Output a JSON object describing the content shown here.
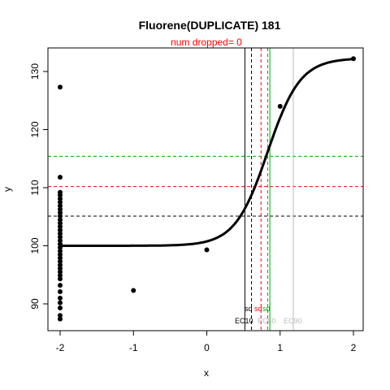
{
  "chart_data": {
    "type": "scatter",
    "title": "Fluorene(DUPLICATE) 181",
    "subtitle": "num dropped= 0",
    "xlabel": "x",
    "ylabel": "y",
    "xlim": [
      -2.0,
      2.0
    ],
    "ylim": [
      85.0,
      135.0
    ],
    "x_ticks": [
      -2,
      -1,
      0,
      1,
      2
    ],
    "y_ticks": [
      90,
      100,
      110,
      120,
      130
    ],
    "grid": false,
    "points": [
      {
        "x": -2,
        "y": 127.3
      },
      {
        "x": -2,
        "y": 111.8
      },
      {
        "x": -2,
        "y": 109.2
      },
      {
        "x": -2,
        "y": 108.7
      },
      {
        "x": -2,
        "y": 108.1
      },
      {
        "x": -2,
        "y": 107.5
      },
      {
        "x": -2,
        "y": 106.9
      },
      {
        "x": -2,
        "y": 106.3
      },
      {
        "x": -2,
        "y": 105.7
      },
      {
        "x": -2,
        "y": 105.1
      },
      {
        "x": -2,
        "y": 104.5
      },
      {
        "x": -2,
        "y": 103.9
      },
      {
        "x": -2,
        "y": 103.3
      },
      {
        "x": -2,
        "y": 102.7
      },
      {
        "x": -2,
        "y": 102.1
      },
      {
        "x": -2,
        "y": 101.5
      },
      {
        "x": -2,
        "y": 100.9
      },
      {
        "x": -2,
        "y": 100.3
      },
      {
        "x": -2,
        "y": 99.7
      },
      {
        "x": -2,
        "y": 99.1
      },
      {
        "x": -2,
        "y": 98.5
      },
      {
        "x": -2,
        "y": 97.9
      },
      {
        "x": -2,
        "y": 97.3
      },
      {
        "x": -2,
        "y": 96.7
      },
      {
        "x": -2,
        "y": 96.1
      },
      {
        "x": -2,
        "y": 95.5
      },
      {
        "x": -2,
        "y": 94.9
      },
      {
        "x": -2,
        "y": 94.3
      },
      {
        "x": -2,
        "y": 93.2
      },
      {
        "x": -2,
        "y": 92.1
      },
      {
        "x": -2,
        "y": 91.0
      },
      {
        "x": -2,
        "y": 90.2
      },
      {
        "x": -2,
        "y": 89.3
      },
      {
        "x": -2,
        "y": 88.0
      },
      {
        "x": -2,
        "y": 87.4
      },
      {
        "x": -1,
        "y": 92.3
      },
      {
        "x": 0,
        "y": 99.3
      },
      {
        "x": 1,
        "y": 124.0
      },
      {
        "x": 2,
        "y": 132.2
      }
    ],
    "fit_curve": {
      "bottom": 100.0,
      "top": 132.3,
      "ec50": 0.83,
      "hill": 4.5
    },
    "hlines": [
      {
        "y": 105.1,
        "color": "#000000",
        "style": "dashed"
      },
      {
        "y": 110.2,
        "color": "#ff0000",
        "style": "dashed"
      },
      {
        "y": 115.4,
        "color": "#00aa00",
        "style": "dashed"
      }
    ],
    "vlines": [
      {
        "x": 0.52,
        "color": "#000000",
        "style": "solid"
      },
      {
        "x": 0.61,
        "color": "#000000",
        "style": "dashed"
      },
      {
        "x": 0.74,
        "color": "#ff0000",
        "style": "dashed"
      },
      {
        "x": 0.83,
        "color": "#00aa00",
        "style": "dashed"
      },
      {
        "x": 0.86,
        "color": "#00aa00",
        "style": "solid"
      },
      {
        "x": 1.18,
        "color": "#bbbbbb",
        "style": "solid"
      }
    ],
    "vline_labels": [
      {
        "text": "sd",
        "color": "#000000"
      },
      {
        "text": "sd",
        "color": "#ff0000"
      },
      {
        "text": "sd",
        "color": "#00aa00"
      },
      {
        "text": "EC10",
        "color": "#000000"
      },
      {
        "text": "EC50",
        "color": "#bbbbbb"
      },
      {
        "text": "EC90",
        "color": "#bbbbbb"
      }
    ]
  }
}
